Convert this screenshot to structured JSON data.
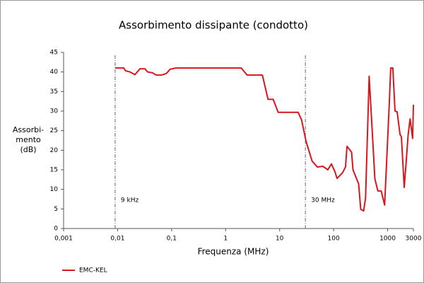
{
  "chart_data": {
    "type": "line",
    "title": "Assorbimento dissipante (condotto)",
    "xlabel": "Frequenza (MHz)",
    "ylabel_lines": [
      "Assorbi-",
      "mento",
      "(dB)"
    ],
    "xscale": "log",
    "xlim": [
      0.001,
      3000
    ],
    "ylim": [
      0,
      45
    ],
    "xticks": [
      {
        "value": 0.001,
        "label": "0,001"
      },
      {
        "value": 0.01,
        "label": "0,01"
      },
      {
        "value": 0.1,
        "label": "0,1"
      },
      1,
      10,
      100,
      1000,
      3000
    ],
    "yticks": [
      0,
      5,
      10,
      15,
      20,
      25,
      30,
      35,
      40,
      45
    ],
    "grid": false,
    "legend": "bottom-left",
    "annotations": [
      {
        "x": 0.009,
        "label": "9 kHz"
      },
      {
        "x": 30,
        "label": "30 MHz"
      }
    ],
    "series": [
      {
        "name": "EMC-KEL",
        "color": "#d7161e",
        "x": [
          0.009,
          0.013,
          0.014,
          0.017,
          0.021,
          0.026,
          0.032,
          0.036,
          0.044,
          0.052,
          0.065,
          0.08,
          0.094,
          0.12,
          1.95,
          2.5,
          4.8,
          6.1,
          7.6,
          9.4,
          22,
          25.5,
          31,
          40,
          50,
          63,
          78,
          91,
          106,
          116,
          147,
          166,
          177,
          215,
          228,
          290,
          318,
          360,
          390,
          455,
          580,
          660,
          760,
          880,
          1070,
          1140,
          1250,
          1370,
          1500,
          1700,
          1800,
          2030,
          2200,
          2400,
          2600,
          2900,
          3000
        ],
        "values": [
          41,
          41,
          40.3,
          40,
          39.3,
          40.8,
          40.8,
          40,
          39.8,
          39.2,
          39.2,
          39.6,
          40.7,
          41,
          41,
          39.2,
          39.2,
          33,
          33,
          29.7,
          29.7,
          27.7,
          22.2,
          17.2,
          15.7,
          15.9,
          15,
          16.5,
          14.5,
          12.8,
          14.3,
          15.7,
          21,
          19.5,
          15,
          11.4,
          4.9,
          4.5,
          7.8,
          38.9,
          12.7,
          9.6,
          9.6,
          6,
          31.6,
          41,
          41,
          30,
          29.8,
          24,
          23.5,
          10.5,
          16.8,
          24,
          28,
          23,
          31.6
        ]
      }
    ]
  }
}
